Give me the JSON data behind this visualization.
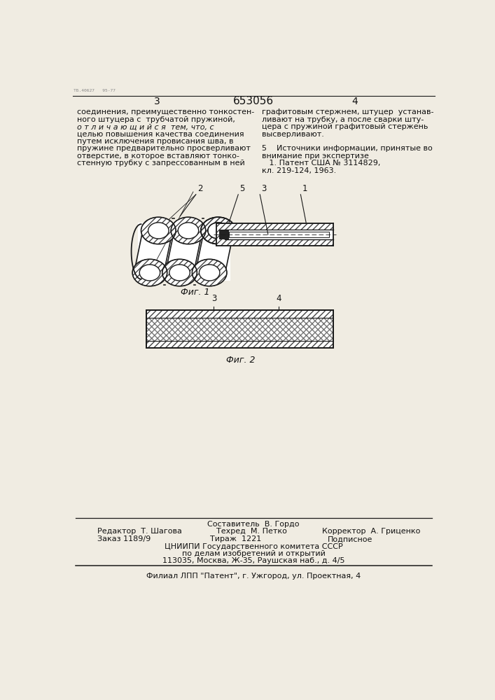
{
  "bg_color": "#f0ece2",
  "page_title": "653056",
  "page_left_num": "3",
  "page_right_num": "4",
  "col_left_text": [
    "соединения, преимущественно тонкостен-",
    "ного штуцера с  трубчатой пружиной,",
    "о т л и ч а ю щ и й с я  тем, что, с",
    "целью повышения качества соединения",
    "путем исключения провисания шва, в",
    "пружине предварительно просверливают",
    "отверстие, в которое вставляют тонко-",
    "стенную трубку с запрессованным в ней"
  ],
  "col_right_text": [
    "графитовым стержнем, штуцер  устанав-",
    "ливают на трубку, а после сварки шту-",
    "цера с пружиной графитовый стержень",
    "высверливают.",
    "",
    "5    Источники информации, принятые во",
    "внимание при экспертизе",
    "   1. Патент США № 3114829,",
    "кл. 219-124, 1963."
  ],
  "fig1_label": "Фиг. 1",
  "fig2_label": "Фиг. 2",
  "label_1": "1",
  "label_2": "2",
  "label_3": "3",
  "label_4": "4",
  "label_5": "5",
  "footer_sestavitel": "Составитель  В. Гордо",
  "footer_redaktor": "Редактор  Т. Шагова",
  "footer_tekhred": "Техред  М. Петко",
  "footer_korrektor": "Корректор  А. Гриценко",
  "footer_zakaz": "Заказ 1189/9",
  "footer_tirazh": "Тираж  1221",
  "footer_podpisnoe": "Подписное",
  "footer_line3": "ЦНИИПИ Государственного комитета СССР",
  "footer_line4": "по делам изобретений и открытий",
  "footer_line5": "113035, Москва, Ж-35, Раушская наб., д. 4/5",
  "footer_line6": "Филиал ЛПП \"Патент\", г. Ужгород, ул. Проектная, 4",
  "stamp_text": "ТБ.40627   95-77",
  "hatch_color": "#444444",
  "line_color": "#1a1a1a",
  "text_color": "#111111"
}
